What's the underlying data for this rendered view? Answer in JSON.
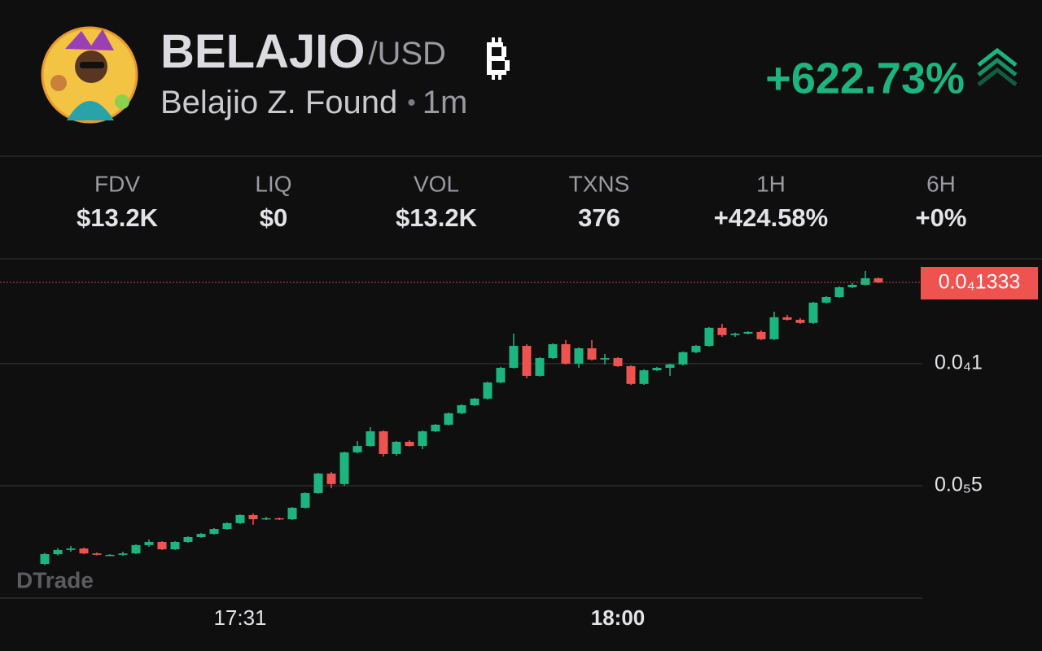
{
  "header": {
    "symbol": "BELAJIO",
    "quote": "/USD",
    "name": "Belajio Z. Found",
    "interval": "1m",
    "change": "+622.73%"
  },
  "stats": [
    {
      "label": "FDV",
      "value": "$13.2K"
    },
    {
      "label": "LIQ",
      "value": "$0"
    },
    {
      "label": "VOL",
      "value": "$13.2K"
    },
    {
      "label": "TXNS",
      "value": "376"
    },
    {
      "label": "1H",
      "value": "+424.58%"
    },
    {
      "label": "6H",
      "value": "+0%"
    }
  ],
  "chart_data": {
    "type": "candlestick",
    "watermark": "DTrade",
    "categories": [
      null,
      null,
      null,
      null,
      null,
      null,
      null,
      null,
      null,
      null,
      null,
      null,
      null,
      null,
      null,
      "17:31",
      null,
      null,
      null,
      null,
      null,
      null,
      null,
      null,
      null,
      null,
      null,
      null,
      null,
      null,
      null,
      null,
      null,
      null,
      null,
      null,
      null,
      null,
      null,
      null,
      null,
      null,
      null,
      null,
      "18:00",
      null,
      null,
      null,
      null,
      null,
      null,
      null,
      null,
      null,
      null,
      null,
      null,
      null,
      null,
      null,
      null,
      null,
      null,
      null,
      null
    ],
    "open": [
      1.8e-06,
      2.2e-06,
      2.37e-06,
      2.43e-06,
      2.23e-06,
      2.17e-06,
      2.17e-06,
      2.23e-06,
      2.57e-06,
      2.7e-06,
      2.4e-06,
      2.7e-06,
      2.9e-06,
      3.03e-06,
      3.23e-06,
      3.47e-06,
      3.8e-06,
      3.63e-06,
      3.67e-06,
      3.63e-06,
      4.1e-06,
      4.7e-06,
      5.5e-06,
      5.07e-06,
      6.37e-06,
      6.63e-06,
      7.23e-06,
      6.3e-06,
      6.8e-06,
      6.63e-06,
      7.23e-06,
      7.5e-06,
      7.97e-06,
      8.3e-06,
      8.57e-06,
      9.23e-06,
      9.83e-06,
      1.073e-05,
      9.5e-06,
      1.023e-05,
      1.08e-05,
      1e-05,
      1.063e-05,
      1.017e-05,
      1.023e-05,
      9.9e-06,
      9.17e-06,
      9.73e-06,
      9.83e-06,
      9.97e-06,
      1.047e-05,
      1.073e-05,
      1.147e-05,
      1.117e-05,
      1.123e-05,
      1.13e-05,
      1.1e-05,
      1.19e-05,
      1.18e-05,
      1.167e-05,
      1.25e-05,
      1.273e-05,
      1.313e-05,
      1.323e-05,
      1.35e-05
    ],
    "high": [
      2.25e-06,
      2.45e-06,
      2.53e-06,
      2.47e-06,
      2.27e-06,
      2.2e-06,
      2.3e-06,
      2.6e-06,
      2.8e-06,
      2.73e-06,
      2.73e-06,
      2.93e-06,
      3.07e-06,
      3.27e-06,
      3.5e-06,
      3.83e-06,
      3.87e-06,
      3.73e-06,
      3.7e-06,
      4.13e-06,
      4.73e-06,
      5.53e-06,
      5.57e-06,
      6.4e-06,
      6.83e-06,
      7.4e-06,
      7.27e-06,
      6.83e-06,
      6.87e-06,
      7.27e-06,
      7.53e-06,
      8e-06,
      8.33e-06,
      8.6e-06,
      9.27e-06,
      9.87e-06,
      1.123e-05,
      1.08e-05,
      1.027e-05,
      1.083e-05,
      1.097e-05,
      1.067e-05,
      1.097e-05,
      1.04e-05,
      1.027e-05,
      9.93e-06,
      9.77e-06,
      9.87e-06,
      1e-05,
      1.05e-05,
      1.077e-05,
      1.15e-05,
      1.163e-05,
      1.127e-05,
      1.133e-05,
      1.137e-05,
      1.213e-05,
      1.2e-05,
      1.187e-05,
      1.253e-05,
      1.277e-05,
      1.317e-05,
      1.33e-05,
      1.38e-05,
      1.353e-05
    ],
    "low": [
      1.75e-06,
      2.15e-06,
      2.3e-06,
      2.2e-06,
      2.15e-06,
      2.13e-06,
      2.13e-06,
      2.2e-06,
      2.5e-06,
      2.37e-06,
      2.37e-06,
      2.67e-06,
      2.87e-06,
      3e-06,
      3.2e-06,
      3.43e-06,
      3.4e-06,
      3.6e-06,
      3.6e-06,
      3.6e-06,
      4.07e-06,
      4.67e-06,
      4.9e-06,
      5e-06,
      6.33e-06,
      6.6e-06,
      6.2e-06,
      6.23e-06,
      6.6e-06,
      6.5e-06,
      7.2e-06,
      7.47e-06,
      7.93e-06,
      8.27e-06,
      8.53e-06,
      9.2e-06,
      9.8e-06,
      9.4e-06,
      9.47e-06,
      1.02e-05,
      9.97e-06,
      9.83e-06,
      1.013e-05,
      9.97e-06,
      9.87e-06,
      9.13e-06,
      9.13e-06,
      9.7e-06,
      9.5e-06,
      9.93e-06,
      1.043e-05,
      1.07e-05,
      1.11e-05,
      1.11e-05,
      1.12e-05,
      1.097e-05,
      1.097e-05,
      1.177e-05,
      1.163e-05,
      1.163e-05,
      1.247e-05,
      1.27e-05,
      1.31e-05,
      1.32e-05,
      1.33e-05
    ],
    "close": [
      2.2e-06,
      2.37e-06,
      2.43e-06,
      2.23e-06,
      2.17e-06,
      2.17e-06,
      2.23e-06,
      2.57e-06,
      2.7e-06,
      2.4e-06,
      2.7e-06,
      2.9e-06,
      3.03e-06,
      3.23e-06,
      3.47e-06,
      3.8e-06,
      3.63e-06,
      3.67e-06,
      3.63e-06,
      4.1e-06,
      4.7e-06,
      5.5e-06,
      5.07e-06,
      6.37e-06,
      6.63e-06,
      7.23e-06,
      6.3e-06,
      6.8e-06,
      6.63e-06,
      7.23e-06,
      7.5e-06,
      7.97e-06,
      8.3e-06,
      8.57e-06,
      9.23e-06,
      9.83e-06,
      1.073e-05,
      9.5e-06,
      1.023e-05,
      1.08e-05,
      1e-05,
      1.063e-05,
      1.017e-05,
      1.023e-05,
      9.9e-06,
      9.17e-06,
      9.73e-06,
      9.83e-06,
      9.97e-06,
      1.047e-05,
      1.073e-05,
      1.147e-05,
      1.117e-05,
      1.123e-05,
      1.13e-05,
      1.1e-05,
      1.19e-05,
      1.18e-05,
      1.167e-05,
      1.25e-05,
      1.273e-05,
      1.313e-05,
      1.323e-05,
      1.35e-05,
      1.333e-05
    ],
    "up_color": "#1db57f",
    "down_color": "#ef5350",
    "ylim": [
      4e-07,
      1.423e-05
    ],
    "yticks": [
      {
        "value": 5e-06,
        "label": "0.0₅5"
      },
      {
        "value": 1e-05,
        "label": "0.0₄1"
      }
    ],
    "last_price": {
      "value": 1.333e-05,
      "label": "0.0₄1333"
    },
    "grid": true
  }
}
